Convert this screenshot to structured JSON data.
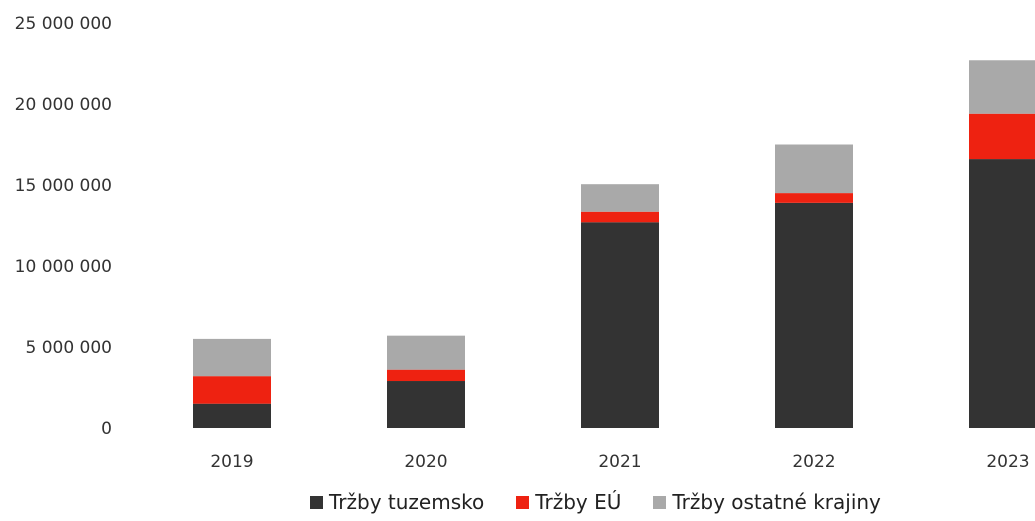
{
  "chart_data": {
    "type": "bar",
    "stacked": true,
    "title": "",
    "xlabel": "",
    "ylabel": "",
    "categories": [
      "2019",
      "2020",
      "2021",
      "2022",
      "2023"
    ],
    "ylim": [
      0,
      25000000
    ],
    "yticks": [
      {
        "value": 0,
        "label": "0"
      },
      {
        "value": 5000000,
        "label": "5 000 000"
      },
      {
        "value": 10000000,
        "label": "10 000 000"
      },
      {
        "value": 15000000,
        "label": "15 000 000"
      },
      {
        "value": 20000000,
        "label": "20 000 000"
      },
      {
        "value": 25000000,
        "label": "25 000 000"
      }
    ],
    "series": [
      {
        "name": "Tržby tuzemsko",
        "color": "#333333",
        "values": [
          1500000,
          2900000,
          12700000,
          13900000,
          16600000
        ]
      },
      {
        "name": "Tržby EÚ",
        "color": "#ee2211",
        "values": [
          1700000,
          700000,
          650000,
          600000,
          2800000
        ]
      },
      {
        "name": "Tržby ostatné  krajiny",
        "color": "#a9a9a9",
        "values": [
          2300000,
          2100000,
          1700000,
          3000000,
          3300000
        ]
      }
    ],
    "grid": false,
    "legend_position": "bottom"
  }
}
